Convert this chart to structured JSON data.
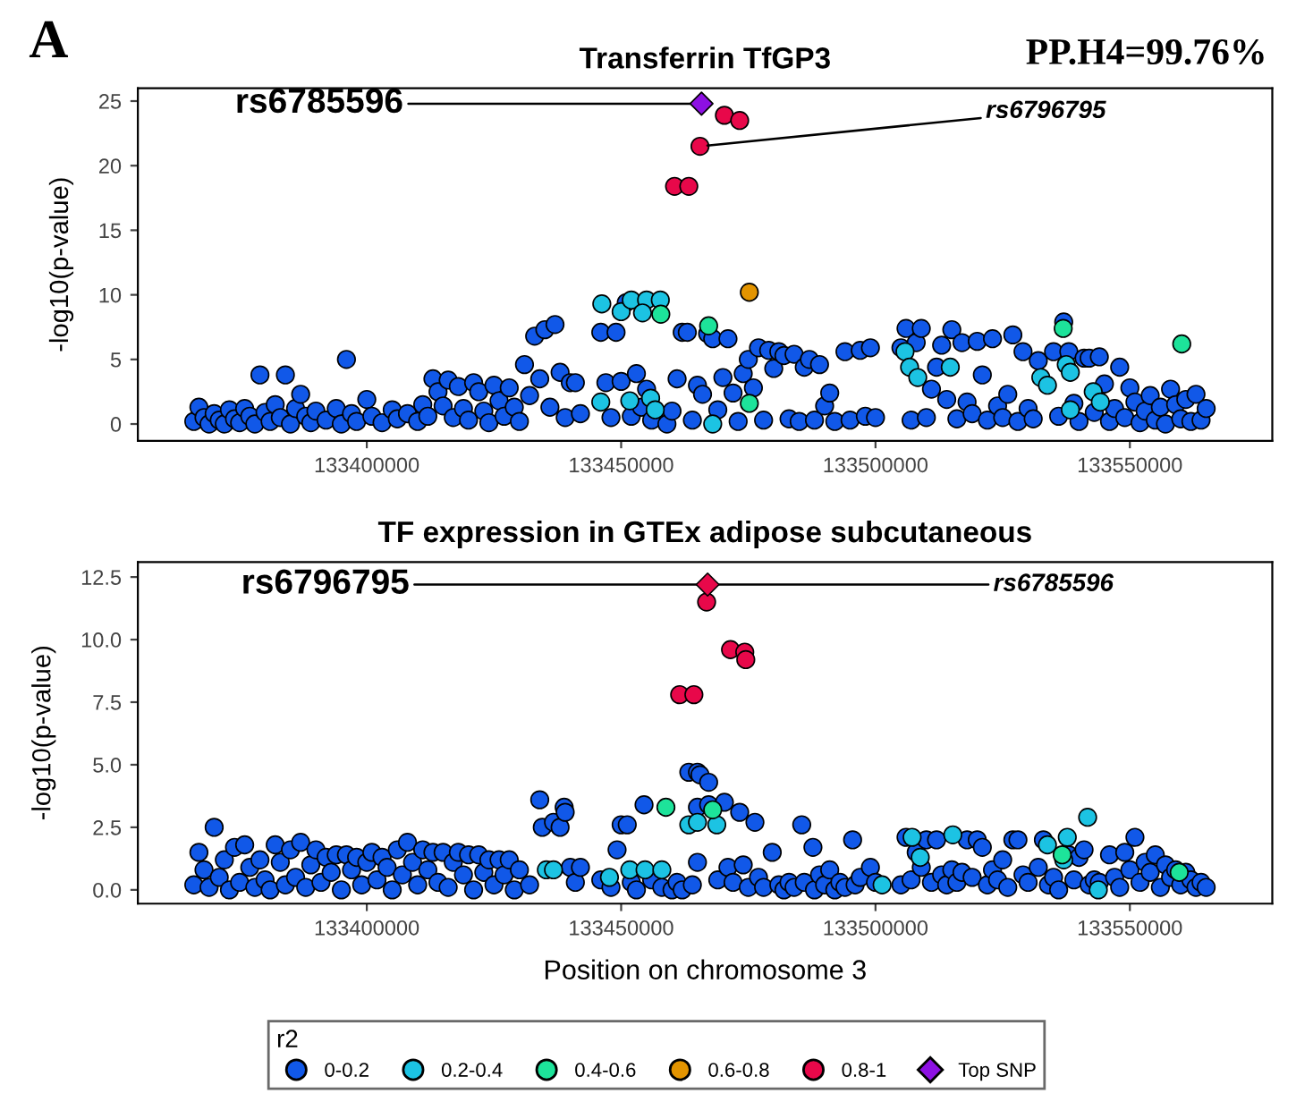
{
  "chart_data": [
    {
      "type": "scatter",
      "title": "Transferrin TfGP3",
      "ylabel": "-log10(p-value)",
      "legend": "bottom",
      "legend_title": "r2",
      "grid": false,
      "xlim": [
        133355000,
        133578000
      ],
      "xticks": [
        133400000,
        133450000,
        133500000,
        133550000
      ],
      "ylim": [
        -1.3,
        26
      ],
      "yticks": [
        0,
        5,
        10,
        15,
        20,
        25
      ],
      "annotations": [
        {
          "text": "rs6785596",
          "x": 133465800,
          "y": 24.8
        },
        {
          "text": "rs6796795",
          "x": 133465500,
          "y": 21.5
        },
        "A",
        "PP.H4=99.76%"
      ],
      "series": [
        {
          "name": "0-0.2",
          "color": "#1158e8",
          "marker": "circle",
          "x": [
            133366000,
            133367000,
            133368000,
            133369000,
            133370000,
            133371000,
            133372000,
            133373000,
            133374000,
            133375000,
            133376000,
            133377000,
            133378000,
            133379000,
            133380000,
            133381000,
            133382000,
            133383000,
            133384000,
            133385000,
            133386000,
            133387000,
            133388000,
            133389000,
            133390000,
            133392000,
            133394000,
            133395000,
            133396000,
            133397000,
            133398000,
            133400000,
            133401000,
            133403000,
            133405000,
            133406000,
            133408000,
            133410000,
            133411000,
            133412000,
            133413000,
            133414000,
            133415000,
            133416000,
            133417000,
            133418000,
            133419000,
            133420000,
            133421000,
            133422000,
            133423000,
            133424000,
            133425000,
            133426000,
            133427000,
            133428000,
            133429000,
            133430000,
            133431000,
            133432000,
            133433000,
            133434000,
            133435000,
            133436000,
            133437000,
            133438000,
            133439000,
            133440000,
            133441000,
            133442000,
            133446000,
            133447000,
            133448000,
            133449000,
            133450000,
            133451000,
            133452000,
            133453000,
            133454000,
            133455000,
            133456000,
            133459000,
            133460000,
            133461000,
            133462000,
            133463000,
            133464000,
            133465000,
            133466000,
            133467000,
            133468000,
            133469000,
            133470000,
            133471000,
            133472000,
            133473000,
            133474000,
            133475000,
            133476000,
            133477000,
            133478000,
            133479000,
            133480000,
            133481000,
            133482000,
            133483000,
            133484000,
            133485000,
            133486000,
            133487000,
            133488000,
            133489000,
            133490000,
            133491000,
            133492000,
            133494000,
            133495000,
            133497000,
            133498000,
            133499000,
            133500000,
            133505000,
            133506000,
            133507000,
            133508000,
            133509000,
            133510000,
            133511000,
            133512000,
            133513000,
            133514000,
            133515000,
            133516000,
            133517000,
            133518000,
            133519000,
            133520000,
            133521000,
            133522000,
            133523000,
            133524000,
            133525000,
            133526000,
            133527000,
            133528000,
            133529000,
            133530000,
            133531000,
            133532000,
            133535000,
            133536000,
            133537000,
            133538000,
            133539000,
            133540000,
            133541000,
            133542000,
            133543000,
            133544000,
            133545000,
            133546000,
            133547000,
            133548000,
            133549000,
            133550000,
            133551000,
            133552000,
            133553000,
            133554000,
            133555000,
            133556000,
            133557000,
            133558000,
            133559000,
            133560000,
            133561000,
            133562000,
            133563000,
            133564000,
            133565000
          ],
          "values": [
            0.2,
            1.3,
            0.5,
            0,
            0.8,
            0.3,
            0,
            1.1,
            0.4,
            0.1,
            1.2,
            0.6,
            0,
            3.8,
            0.9,
            0.2,
            1.5,
            0.5,
            3.8,
            0,
            1.2,
            2.3,
            0.6,
            0.1,
            1,
            0.3,
            1.2,
            0,
            5,
            0.8,
            0.2,
            1.9,
            0.6,
            0.1,
            1.1,
            0.4,
            0.8,
            0.2,
            1.5,
            0.6,
            3.5,
            2.5,
            1.4,
            3.4,
            0.5,
            2.9,
            1.2,
            0.3,
            3.2,
            2.5,
            1,
            0.1,
            3,
            1.8,
            0.6,
            2.8,
            1.3,
            0.2,
            4.6,
            2.2,
            6.8,
            3.5,
            7.3,
            1.3,
            7.7,
            4,
            0.5,
            3.2,
            3.2,
            0.8,
            7.1,
            3.2,
            0.5,
            7.1,
            3.3,
            9.4,
            0.6,
            3.9,
            1.3,
            2.7,
            0.3,
            0,
            1,
            3.5,
            7.1,
            7.1,
            0.3,
            3,
            2.3,
            7,
            6.6,
            1.1,
            3.6,
            6.6,
            2.4,
            0.2,
            3.9,
            5,
            2.8,
            5.9,
            0.3,
            5.7,
            4.3,
            5.6,
            5.3,
            0.4,
            5.4,
            0.2,
            4.4,
            5,
            0.3,
            4.6,
            1.4,
            2.4,
            0.2,
            5.6,
            0.3,
            5.7,
            0.6,
            5.9,
            0.5,
            5.9,
            7.4,
            0.3,
            6.3,
            7.4,
            0.5,
            2.7,
            4.4,
            6.1,
            1.9,
            7.3,
            0.4,
            6.3,
            1.7,
            0.8,
            6.4,
            3.8,
            0.3,
            6.6,
            1.4,
            0.5,
            2.3,
            6.9,
            0.2,
            5.6,
            1.2,
            0.4,
            4.9,
            5.6,
            0.6,
            7.9,
            5.6,
            1.6,
            0.2,
            5.1,
            5.1,
            0.9,
            5.2,
            3.1,
            0.2,
            1.2,
            4.4,
            0.5,
            2.8,
            1.7,
            0.1,
            1,
            2.2,
            0.3,
            1.3,
            0,
            2.7,
            1.5,
            0.4,
            1.9,
            0.2,
            2.3,
            0.3,
            1.2
          ]
        },
        {
          "name": "0.2-0.4",
          "color": "#1cc3e3",
          "marker": "circle",
          "x": [
            133446200,
            133450000,
            133452000,
            133455000,
            133457700,
            133454200,
            133446000,
            133451700,
            133455800,
            133456700,
            133468000,
            133505800,
            133506700,
            133508300,
            133514700,
            133532500,
            133533800,
            133537500,
            133538300,
            133542800,
            133544200,
            133538300
          ],
          "values": [
            9.3,
            8.7,
            9.6,
            9.6,
            9.6,
            8.6,
            1.7,
            1.8,
            2,
            1.1,
            0,
            5.6,
            4.4,
            3.6,
            4.4,
            3.6,
            3,
            4.6,
            4,
            2.5,
            1.7,
            1.1
          ]
        },
        {
          "name": "0.4-0.6",
          "color": "#1de39a",
          "marker": "circle",
          "x": [
            133457800,
            133467200,
            133475200,
            133536900,
            133560200
          ],
          "values": [
            8.5,
            7.6,
            1.6,
            7.4,
            6.2
          ]
        },
        {
          "name": "0.6-0.8",
          "color": "#e39400",
          "marker": "circle",
          "x": [
            133475200
          ],
          "values": [
            10.2
          ]
        },
        {
          "name": "0.8-1",
          "color": "#e8084a",
          "marker": "circle",
          "x": [
            133470300,
            133473300,
            133465500,
            133460500,
            133463300
          ],
          "values": [
            23.9,
            23.5,
            21.5,
            18.4,
            18.4
          ]
        },
        {
          "name": "Top SNP",
          "color": "#8d10e3",
          "marker": "diamond",
          "x": [
            133465800
          ],
          "values": [
            24.8
          ]
        }
      ]
    },
    {
      "type": "scatter",
      "title": "TF expression in GTEx adipose subcutaneous",
      "ylabel": "-log10(p-value)",
      "xlabel": "Position on chromosome 3",
      "grid": false,
      "xlim": [
        133355000,
        133578000
      ],
      "xticks": [
        133400000,
        133450000,
        133500000,
        133550000
      ],
      "ylim": [
        -0.55,
        13.1
      ],
      "yticks": [
        {
          "value": 0,
          "label": "0.0"
        },
        {
          "value": 2.5,
          "label": "2.5"
        },
        {
          "value": 5,
          "label": "5.0"
        },
        {
          "value": 7.5,
          "label": "7.5"
        },
        {
          "value": 10,
          "label": "10.0"
        },
        {
          "value": 12.5,
          "label": "12.5"
        }
      ],
      "annotations": [
        {
          "text": "rs6796795",
          "x": 133467000,
          "y": 12.2
        },
        {
          "text": "rs6785596",
          "x": 133467000,
          "y": 12.2
        }
      ],
      "series": [
        {
          "color": "#1158e8",
          "marker": "circle",
          "x": [
            133366000,
            133367000,
            133368000,
            133369000,
            133370000,
            133371000,
            133372000,
            133373000,
            133374000,
            133375000,
            133376000,
            133377000,
            133378000,
            133379000,
            133380000,
            133381000,
            133382000,
            133383000,
            133384000,
            133385000,
            133386000,
            133387000,
            133388000,
            133389000,
            133390000,
            133391000,
            133392000,
            133393000,
            133394000,
            133395000,
            133396000,
            133397000,
            133398000,
            133399000,
            133400000,
            133401000,
            133402000,
            133403000,
            133404000,
            133405000,
            133406000,
            133407000,
            133408000,
            133409000,
            133410000,
            133411000,
            133412000,
            133413000,
            133414000,
            133415000,
            133416000,
            133417000,
            133418000,
            133419000,
            133420000,
            133421000,
            133422000,
            133423000,
            133424000,
            133425000,
            133426000,
            133427000,
            133428000,
            133429000,
            133430000,
            133432000,
            133434000,
            133434500,
            133436700,
            133438000,
            133438800,
            133439000,
            133440000,
            133441000,
            133442000,
            133446000,
            133448000,
            133449200,
            133450000,
            133451200,
            133452000,
            133453000,
            133454500,
            133456000,
            133458000,
            133460000,
            133461000,
            133462000,
            133463300,
            133464000,
            133465000,
            133465500,
            133467200,
            133465000,
            133467200,
            133465000,
            133469000,
            133470300,
            133471000,
            133472000,
            133473300,
            133474000,
            133475000,
            133476300,
            133477000,
            133478000,
            133479700,
            133481000,
            133482000,
            133483000,
            133484000,
            133485500,
            133486000,
            133487700,
            133488000,
            133489000,
            133490000,
            133491000,
            133492000,
            133493000,
            133494000,
            133495500,
            133496000,
            133497000,
            133499000,
            133500000,
            133505000,
            133506000,
            133507000,
            133508000,
            133509000,
            133510000,
            133511000,
            133512000,
            133513000,
            133514000,
            133515000,
            133516000,
            133517000,
            133518000,
            133519000,
            133520000,
            133521000,
            133522000,
            133523000,
            133524000,
            133525000,
            133526000,
            133527000,
            133528000,
            133529000,
            133530000,
            133532000,
            133533000,
            133534000,
            133535000,
            133536000,
            133538000,
            133539000,
            133540000,
            133541000,
            133542000,
            133543000,
            133544000,
            133546000,
            133547000,
            133548000,
            133549000,
            133550000,
            133551000,
            133552000,
            133553000,
            133554000,
            133555000,
            133556000,
            133557000,
            133558000,
            133559000,
            133560000,
            133561000,
            133562000,
            133563000,
            133564000,
            133565000
          ],
          "values": [
            0.2,
            1.5,
            0.8,
            0.1,
            2.5,
            0.5,
            1.2,
            0,
            1.7,
            0.3,
            1.8,
            0.9,
            0.1,
            1.2,
            0.4,
            0,
            1.8,
            1.1,
            0.2,
            1.6,
            0.5,
            1.9,
            0.1,
            1,
            1.6,
            0.3,
            1.3,
            0.7,
            1.4,
            0,
            1.4,
            0.8,
            1.3,
            0.2,
            1.1,
            1.5,
            0.4,
            1.3,
            0.9,
            0,
            1.6,
            0.6,
            1.9,
            1.1,
            0.2,
            1.6,
            0.8,
            1.5,
            0.3,
            1.5,
            0.1,
            1.1,
            1.5,
            0.6,
            1.4,
            0,
            1.4,
            0.7,
            1.2,
            0.2,
            1.2,
            0.6,
            1.2,
            0,
            0.8,
            0.2,
            3.6,
            2.5,
            2.7,
            2.5,
            3.3,
            3.1,
            0.9,
            0.3,
            0.9,
            0.4,
            0.1,
            1.6,
            2.6,
            2.6,
            0.3,
            0,
            3.4,
            0.4,
            0.1,
            0,
            0.3,
            0,
            4.7,
            0.2,
            4.7,
            4.6,
            4.3,
            3.3,
            3.4,
            1.1,
            0.4,
            3.5,
            0.9,
            0.3,
            3.1,
            1,
            0.1,
            2.7,
            0.5,
            0.1,
            1.5,
            0.2,
            0,
            0.3,
            0.1,
            2.6,
            0.3,
            1.7,
            0,
            0.6,
            0.2,
            0.8,
            0,
            0.3,
            0.1,
            2,
            0.2,
            0.5,
            0.9,
            0.3,
            0.2,
            2.1,
            0.4,
            1.5,
            0.9,
            2,
            0.3,
            2,
            0.6,
            0.2,
            0.8,
            0.3,
            0.7,
            2,
            0.5,
            2,
            1.7,
            0.2,
            0.8,
            0.4,
            1.2,
            0.1,
            2,
            2,
            0.6,
            0.3,
            0.9,
            2,
            0.2,
            0.5,
            0,
            1.4,
            0.4,
            1.3,
            1.6,
            0.2,
            0.4,
            0.3,
            1.4,
            0.5,
            0.1,
            1.5,
            0.8,
            2.1,
            0.3,
            1.1,
            0.7,
            1.4,
            0.1,
            1,
            0.5,
            0.8,
            0.2,
            0.7,
            0.4,
            0.1,
            0.3,
            0.1
          ]
        },
        {
          "color": "#1cc3e3",
          "marker": "circle",
          "x": [
            133435300,
            133436700,
            133447700,
            133451700,
            133454700,
            133458000,
            133463300,
            133465000,
            133468800,
            133501300,
            133507200,
            133508800,
            133515200,
            133533800,
            133537700,
            133541700,
            133543800,
            133537000
          ],
          "values": [
            0.8,
            0.8,
            0.5,
            0.8,
            0.8,
            0.8,
            2.6,
            2.7,
            2.6,
            0.2,
            2.1,
            1.3,
            2.2,
            1.8,
            2.1,
            2.9,
            0,
            1.2
          ]
        },
        {
          "color": "#1de39a",
          "marker": "circle",
          "x": [
            133458800,
            133468000,
            133536700,
            133559700
          ],
          "values": [
            3.3,
            3.2,
            1.4,
            0.7
          ]
        },
        {
          "color": "#e8084a",
          "marker": "circle",
          "x": [
            133466800,
            133471500,
            133474300,
            133474500,
            133461500,
            133464300
          ],
          "values": [
            11.5,
            9.6,
            9.5,
            9.2,
            7.8,
            7.8
          ]
        },
        {
          "color": "#e8084a",
          "marker": "diamond",
          "x": [
            133467000
          ],
          "values": [
            12.2
          ]
        }
      ]
    }
  ]
}
